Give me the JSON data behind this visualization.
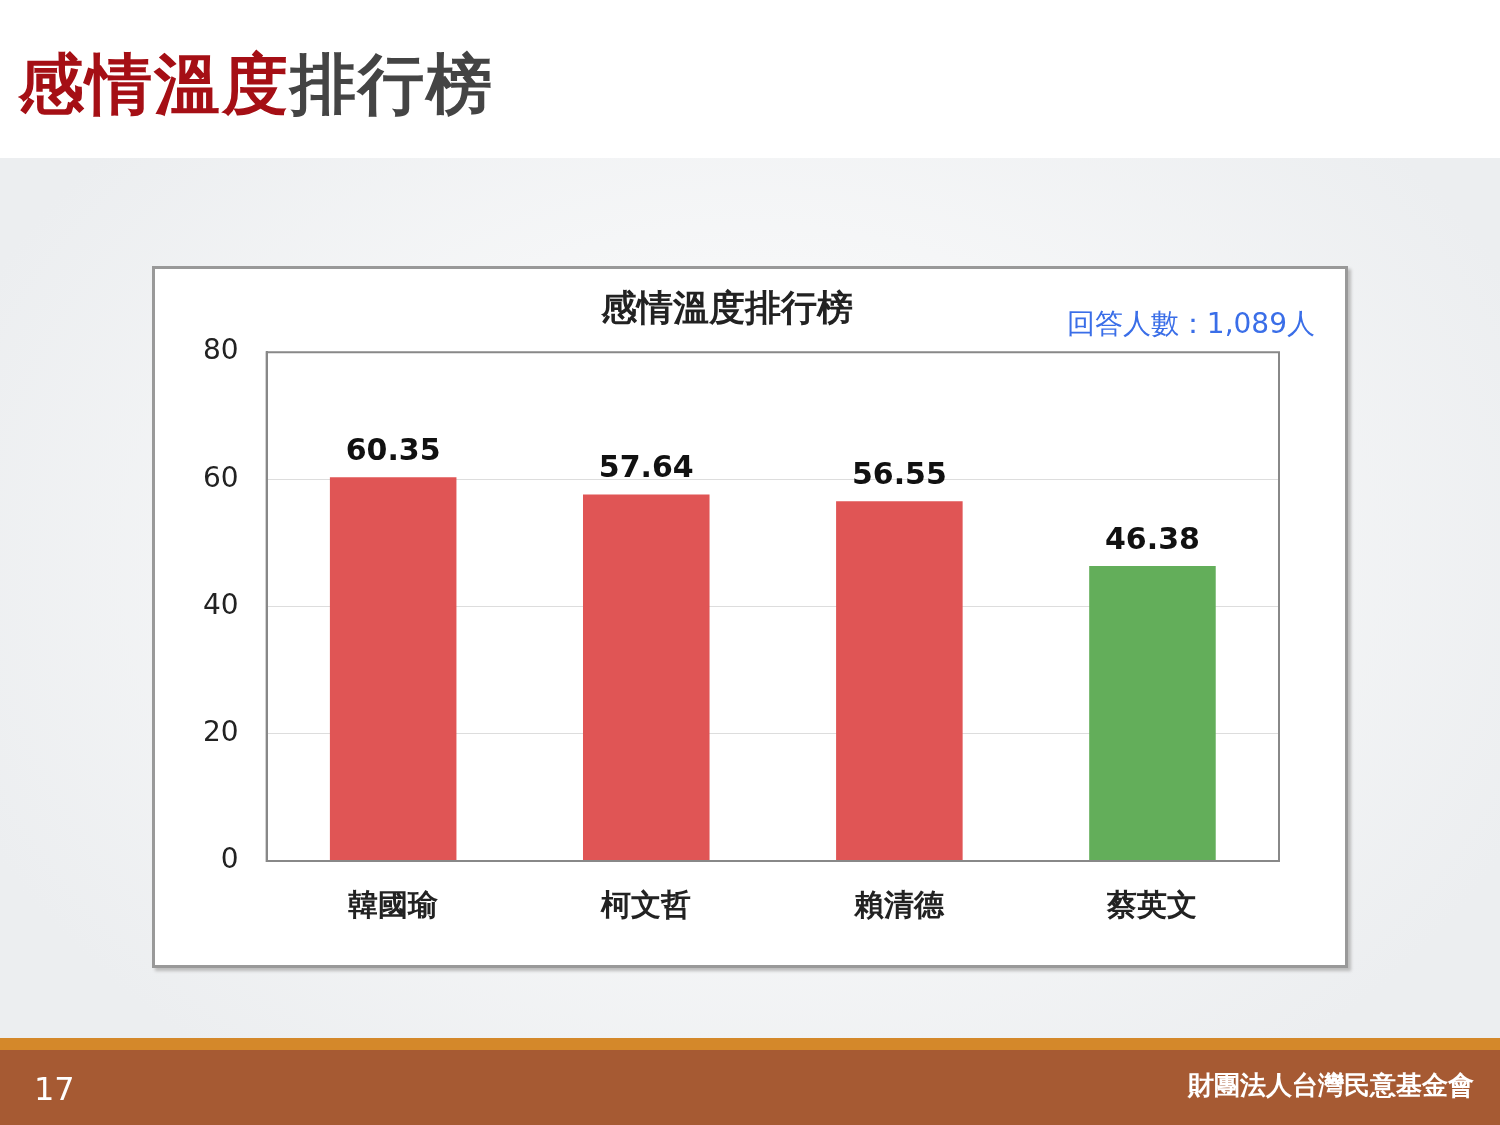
{
  "chart_data": {
    "type": "bar",
    "title": "感情溫度排行榜",
    "categories": [
      "韓國瑜",
      "柯文哲",
      "賴清德",
      "蔡英文"
    ],
    "values": [
      60.35,
      57.64,
      56.55,
      46.38
    ],
    "colors": [
      "#e05555",
      "#e05555",
      "#e05555",
      "#63ae5a"
    ],
    "ylim": [
      0,
      80
    ],
    "yticks": [
      0,
      20,
      40,
      60,
      80
    ],
    "grid": "y",
    "data_labels": true,
    "legend": false,
    "annotations": [
      "感情溫度排行榜",
      "回答人數：1,089人",
      "17",
      "財團法人台灣民意基金會"
    ]
  }
}
